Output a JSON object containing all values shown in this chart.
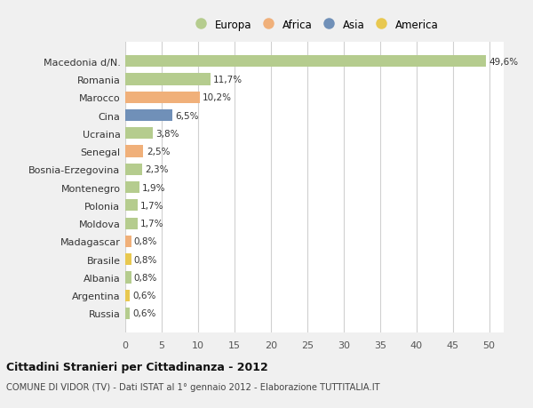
{
  "categories": [
    "Macedonia d/N.",
    "Romania",
    "Marocco",
    "Cina",
    "Ucraina",
    "Senegal",
    "Bosnia-Erzegovina",
    "Montenegro",
    "Polonia",
    "Moldova",
    "Madagascar",
    "Brasile",
    "Albania",
    "Argentina",
    "Russia"
  ],
  "values": [
    49.6,
    11.7,
    10.2,
    6.5,
    3.8,
    2.5,
    2.3,
    1.9,
    1.7,
    1.7,
    0.8,
    0.8,
    0.8,
    0.6,
    0.6
  ],
  "labels": [
    "49,6%",
    "11,7%",
    "10,2%",
    "6,5%",
    "3,8%",
    "2,5%",
    "2,3%",
    "1,9%",
    "1,7%",
    "1,7%",
    "0,8%",
    "0,8%",
    "0,8%",
    "0,6%",
    "0,6%"
  ],
  "colors": [
    "#b5cc8e",
    "#b5cc8e",
    "#f0b07a",
    "#7090b8",
    "#b5cc8e",
    "#f0b07a",
    "#b5cc8e",
    "#b5cc8e",
    "#b5cc8e",
    "#b5cc8e",
    "#f0b07a",
    "#e8c850",
    "#b5cc8e",
    "#e8c850",
    "#b5cc8e"
  ],
  "legend_labels": [
    "Europa",
    "Africa",
    "Asia",
    "America"
  ],
  "legend_colors": [
    "#b5cc8e",
    "#f0b07a",
    "#7090b8",
    "#e8c850"
  ],
  "title": "Cittadini Stranieri per Cittadinanza - 2012",
  "subtitle": "COMUNE DI VIDOR (TV) - Dati ISTAT al 1° gennaio 2012 - Elaborazione TUTTITALIA.IT",
  "xlim": [
    0,
    52
  ],
  "xticks": [
    0,
    5,
    10,
    15,
    20,
    25,
    30,
    35,
    40,
    45,
    50
  ],
  "bg_color": "#f0f0f0",
  "plot_bg": "#ffffff",
  "grid_color": "#d0d0d0"
}
